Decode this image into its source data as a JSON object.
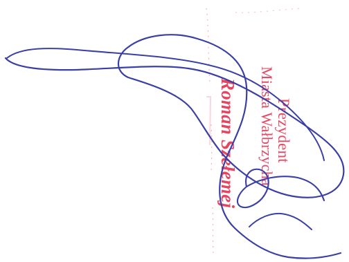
{
  "stamp": {
    "title": "Prezydent",
    "city": "Miasta Wałbrzycha",
    "name": "Roman Szełemej"
  },
  "colors": {
    "stamp_red": "#e63a57",
    "signature_blue": "#3a3fa6",
    "faint_red_mark": "#f2a0ad"
  }
}
